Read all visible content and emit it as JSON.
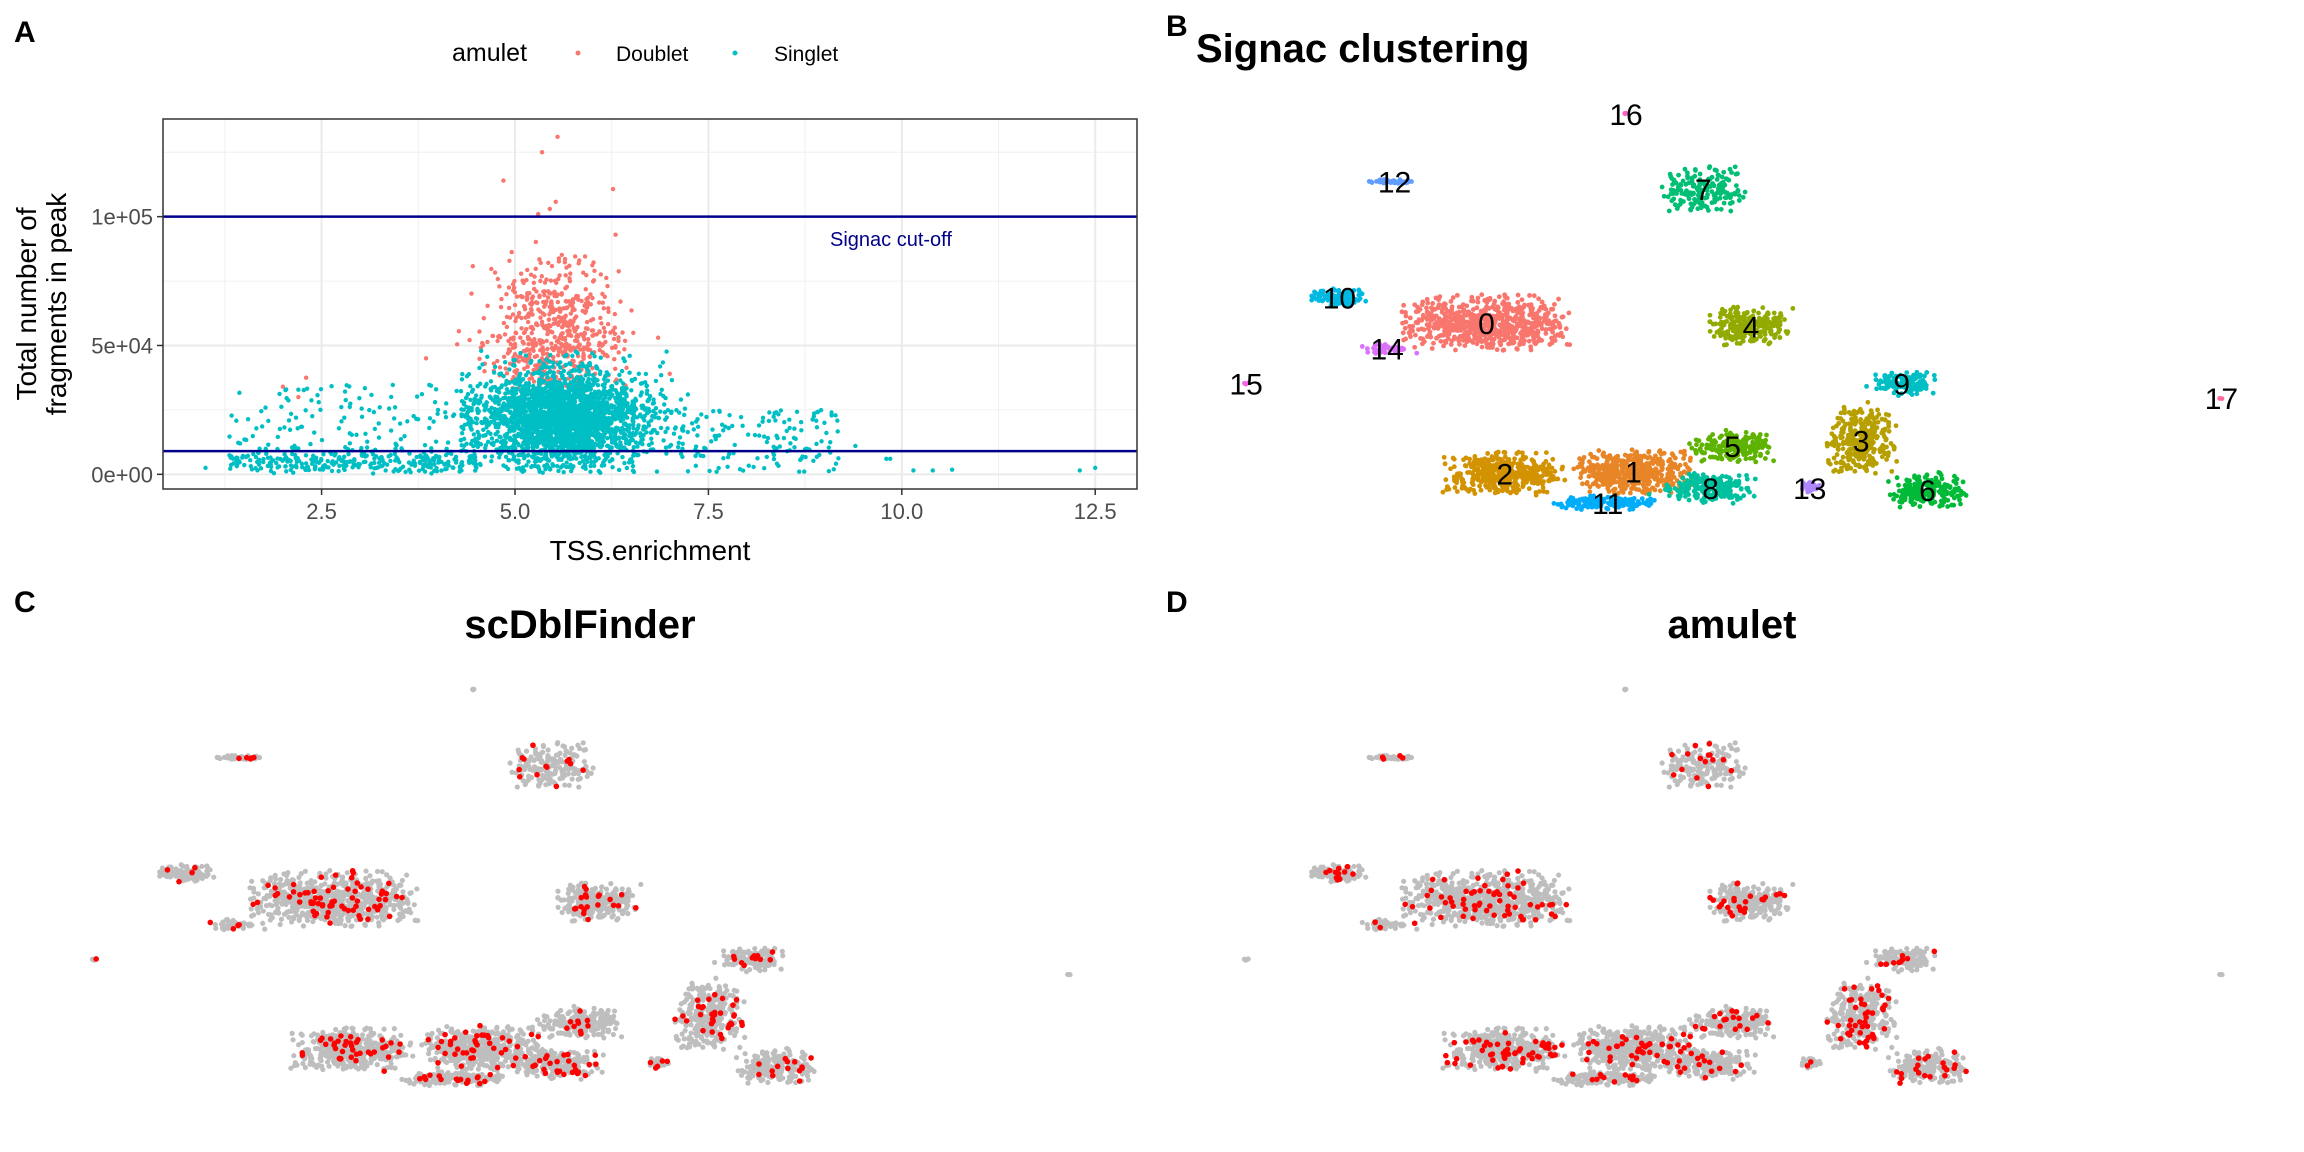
{
  "panel_labels": {
    "a": "A",
    "b": "B",
    "c": "C",
    "d": "D"
  },
  "colors": {
    "doublet": "#F8766D",
    "singlet": "#00BFC4",
    "cutoff": "#00008B",
    "dbl_red": "#FF0000",
    "grey": "#BEBEBE"
  },
  "chart_data": [
    {
      "type": "scatter",
      "panel": "A",
      "title": "",
      "xlabel": "TSS.enrichment",
      "ylabel_line1": "Total number of",
      "ylabel_line2": "fragments in peak",
      "xlim": [
        0.45,
        13.04
      ],
      "ylim": [
        -5700,
        137900
      ],
      "xticks": [
        2.5,
        5.0,
        7.5,
        10.0,
        12.5
      ],
      "xtick_labels": [
        "2.5",
        "5.0",
        "7.5",
        "10.0",
        "12.5"
      ],
      "yticks": [
        0,
        50000,
        100000
      ],
      "ytick_labels": [
        "0e+00",
        "5e+04",
        "1e+05"
      ],
      "grid": true,
      "legend": {
        "title": "amulet",
        "position": "top",
        "entries": [
          "Doublet",
          "Singlet"
        ]
      },
      "hlines": [
        {
          "y": 100000,
          "label": "Signac cut-off",
          "label_x": 9.3,
          "label_y": 91000
        },
        {
          "y": 9000
        }
      ],
      "series_distributions": [
        {
          "name": "Doublet",
          "n": 600,
          "tss_mean": 5.5,
          "tss_sd": 0.42,
          "frag_mean": 55000,
          "frag_sd": 13000,
          "frag_min": 33000
        },
        {
          "name": "Singlet",
          "n": 2600,
          "tss_mean": 5.6,
          "tss_sd": 0.55,
          "frag_mean": 22000,
          "frag_sd": 9000,
          "frag_min": 500,
          "tss_min": 4.3
        },
        {
          "name": "Singlet",
          "n": 420,
          "tss_range": [
            1.3,
            4.5
          ],
          "frag_mean": 5000,
          "frag_sd": 2500,
          "frag_range": [
            800,
            35000
          ]
        },
        {
          "name": "Singlet",
          "n": 160,
          "tss_range": [
            6.5,
            9.2
          ],
          "frag_range": [
            800,
            25000
          ]
        }
      ],
      "outliers": {
        "Doublet": [
          [
            5.55,
            131000
          ],
          [
            5.35,
            125000
          ],
          [
            4.85,
            114000
          ],
          [
            5.45,
            103000
          ],
          [
            5.3,
            101000
          ],
          [
            6.3,
            93000
          ],
          [
            2.0,
            34000
          ],
          [
            2.3,
            37500
          ],
          [
            2.2,
            30000
          ],
          [
            3.85,
            45000
          ],
          [
            6.85,
            53000
          ],
          [
            7.0,
            39000
          ]
        ],
        "Singlet": [
          [
            10.15,
            1500
          ],
          [
            10.4,
            1500
          ],
          [
            10.65,
            1800
          ],
          [
            12.3,
            1500
          ],
          [
            12.5,
            2500
          ],
          [
            9.8,
            6000
          ],
          [
            9.85,
            6000
          ],
          [
            9.4,
            11000
          ],
          [
            1.0,
            2500
          ],
          [
            9.0,
            20000
          ],
          [
            8.55,
            18000
          ]
        ]
      }
    },
    {
      "type": "scatter",
      "panel": "B",
      "title": "Signac clustering",
      "xlabel": "",
      "ylabel": "",
      "xlim": [
        0,
        15.68
      ],
      "ylim": [
        0,
        15.68
      ],
      "clusters": [
        {
          "id": "0",
          "color": "#F8766D",
          "x": 4.55,
          "y": 6.88,
          "sx": 0.95,
          "sy": 1.6,
          "n": 700
        },
        {
          "id": "1",
          "color": "#E88526",
          "x": 6.55,
          "y": 2.83,
          "sx": 0.7,
          "sy": 1.25,
          "n": 450
        },
        {
          "id": "2",
          "color": "#D39200",
          "x": 4.8,
          "y": 2.78,
          "sx": 0.7,
          "sy": 1.25,
          "n": 420
        },
        {
          "id": "3",
          "color": "#B79F00",
          "x": 9.65,
          "y": 3.68,
          "sx": 0.4,
          "sy": 2.0,
          "n": 320
        },
        {
          "id": "4",
          "color": "#93AA00",
          "x": 8.15,
          "y": 6.78,
          "sx": 0.5,
          "sy": 1.1,
          "n": 260
        },
        {
          "id": "5",
          "color": "#5EB300",
          "x": 7.9,
          "y": 3.53,
          "sx": 0.5,
          "sy": 1.0,
          "n": 200
        },
        {
          "id": "6",
          "color": "#00BA38",
          "x": 10.55,
          "y": 2.33,
          "sx": 0.45,
          "sy": 1.0,
          "n": 200
        },
        {
          "id": "7",
          "color": "#00BF74",
          "x": 7.5,
          "y": 10.53,
          "sx": 0.5,
          "sy": 1.3,
          "n": 180
        },
        {
          "id": "8",
          "color": "#00C19F",
          "x": 7.6,
          "y": 2.38,
          "sx": 0.55,
          "sy": 0.9,
          "n": 220
        },
        {
          "id": "9",
          "color": "#00BFC4",
          "x": 10.2,
          "y": 5.23,
          "sx": 0.4,
          "sy": 0.7,
          "n": 140
        },
        {
          "id": "10",
          "color": "#00B9E3",
          "x": 2.55,
          "y": 7.58,
          "sx": 0.35,
          "sy": 0.5,
          "n": 110
        },
        {
          "id": "11",
          "color": "#00ADFA",
          "x": 6.2,
          "y": 1.98,
          "sx": 0.65,
          "sy": 0.4,
          "n": 140
        },
        {
          "id": "12",
          "color": "#619CFF",
          "x": 3.3,
          "y": 10.73,
          "sx": 0.3,
          "sy": 0.12,
          "n": 50
        },
        {
          "id": "13",
          "color": "#AE87FF",
          "x": 8.95,
          "y": 2.38,
          "sx": 0.13,
          "sy": 0.35,
          "n": 30
        },
        {
          "id": "14",
          "color": "#DB72FB",
          "x": 3.2,
          "y": 6.18,
          "sx": 0.35,
          "sy": 0.3,
          "n": 50
        },
        {
          "id": "15",
          "color": "#F564E3",
          "x": 1.28,
          "y": 5.23,
          "sx": 0.03,
          "sy": 0.05,
          "n": 3
        },
        {
          "id": "16",
          "color": "#FF61C3",
          "x": 6.45,
          "y": 12.58,
          "sx": 0.03,
          "sy": 0.05,
          "n": 3
        },
        {
          "id": "17",
          "color": "#FF699C",
          "x": 14.55,
          "y": 4.83,
          "sx": 0.02,
          "sy": 0.04,
          "n": 2
        }
      ]
    },
    {
      "type": "scatter",
      "panel": "C",
      "title": "scDblFinder",
      "doublet_fraction": 0.09,
      "colors": [
        "#BEBEBE",
        "#FF0000"
      ]
    },
    {
      "type": "scatter",
      "panel": "D",
      "title": "amulet",
      "doublet_fraction": 0.08,
      "colors": [
        "#BEBEBE",
        "#FF0000"
      ]
    }
  ]
}
